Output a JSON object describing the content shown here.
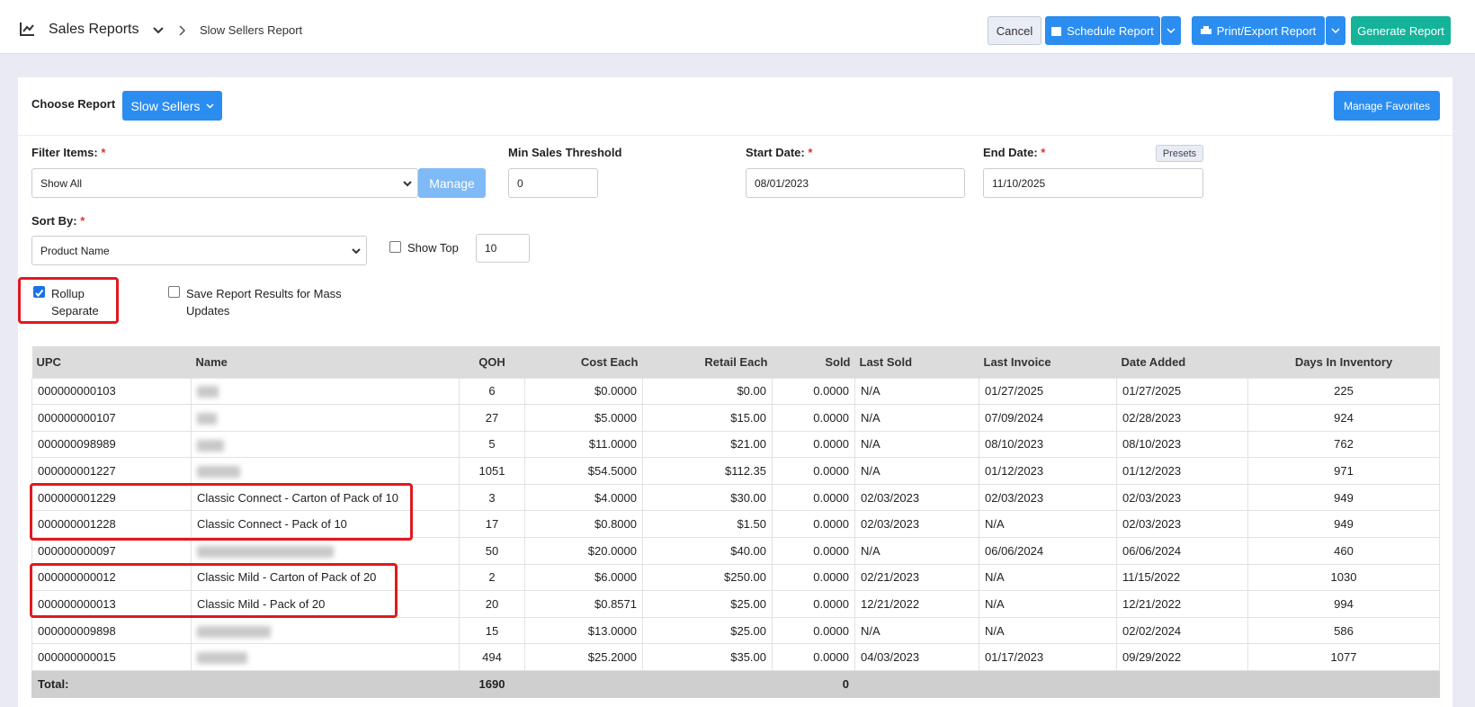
{
  "header": {
    "section": "Sales Reports",
    "breadcrumb": "Slow Sellers Report",
    "buttons": {
      "cancel": "Cancel",
      "schedule": "Schedule Report",
      "print": "Print/Export Report",
      "generate": "Generate Report"
    }
  },
  "form": {
    "choose_report_label": "Choose Report",
    "report_button": "Slow Sellers",
    "manage_favorites": "Manage Favorites",
    "filter_items_label": "Filter Items:",
    "filter_items_value": "Show All",
    "manage_button": "Manage",
    "min_sales_label": "Min Sales Threshold",
    "min_sales_value": "0",
    "start_date_label": "Start Date:",
    "start_date_value": "08/01/2023",
    "end_date_label": "End Date:",
    "end_date_value": "11/10/2025",
    "presets_button": "Presets",
    "required_mark": "*",
    "sort_by_label": "Sort By:",
    "sort_by_value": "Product Name",
    "show_top_label": "Show Top",
    "show_top_value": "10",
    "rollup_label": "Rollup Separate",
    "save_results_label": "Save Report Results for Mass Updates"
  },
  "table": {
    "columns": [
      "UPC",
      "Name",
      "QOH",
      "Cost Each",
      "Retail Each",
      "Sold",
      "Last Sold",
      "Last Invoice",
      "Date Added",
      "Days In Inventory"
    ],
    "rows": [
      [
        "000000000103",
        null,
        "6",
        "$0.0000",
        "$0.00",
        "0.0000",
        "N/A",
        "01/27/2025",
        "01/27/2025",
        "225"
      ],
      [
        "000000000107",
        null,
        "27",
        "$5.0000",
        "$15.00",
        "0.0000",
        "N/A",
        "07/09/2024",
        "02/28/2023",
        "924"
      ],
      [
        "000000098989",
        null,
        "5",
        "$11.0000",
        "$21.00",
        "0.0000",
        "N/A",
        "08/10/2023",
        "08/10/2023",
        "762"
      ],
      [
        "000000001227",
        null,
        "1051",
        "$54.5000",
        "$112.35",
        "0.0000",
        "N/A",
        "01/12/2023",
        "01/12/2023",
        "971"
      ],
      [
        "000000001229",
        "Classic Connect - Carton of Pack of 10",
        "3",
        "$4.0000",
        "$30.00",
        "0.0000",
        "02/03/2023",
        "02/03/2023",
        "02/03/2023",
        "949"
      ],
      [
        "000000001228",
        "Classic Connect - Pack of 10",
        "17",
        "$0.8000",
        "$1.50",
        "0.0000",
        "02/03/2023",
        "N/A",
        "02/03/2023",
        "949"
      ],
      [
        "000000000097",
        null,
        "50",
        "$20.0000",
        "$40.00",
        "0.0000",
        "N/A",
        "06/06/2024",
        "06/06/2024",
        "460"
      ],
      [
        "000000000012",
        "Classic Mild - Carton of Pack of 20",
        "2",
        "$6.0000",
        "$250.00",
        "0.0000",
        "02/21/2023",
        "N/A",
        "11/15/2022",
        "1030"
      ],
      [
        "000000000013",
        "Classic Mild - Pack of 20",
        "20",
        "$0.8571",
        "$25.00",
        "0.0000",
        "12/21/2022",
        "N/A",
        "12/21/2022",
        "994"
      ],
      [
        "000000009898",
        null,
        "15",
        "$13.0000",
        "$25.00",
        "0.0000",
        "N/A",
        "N/A",
        "02/02/2024",
        "586"
      ],
      [
        "000000000015",
        null,
        "494",
        "$25.2000",
        "$35.00",
        "0.0000",
        "04/03/2023",
        "01/17/2023",
        "09/29/2022",
        "1077"
      ]
    ],
    "total": {
      "label": "Total:",
      "qoh": "1690",
      "sold": "0"
    }
  }
}
